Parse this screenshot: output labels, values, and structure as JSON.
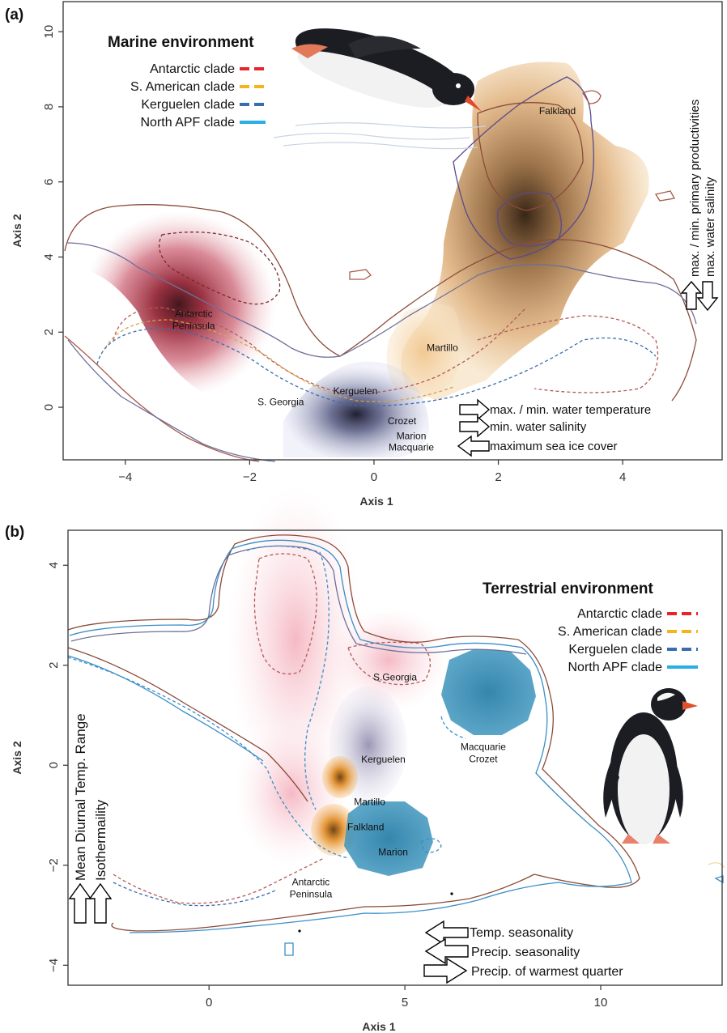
{
  "chart_data": [
    {
      "type": "scatter",
      "panel": "(a)",
      "title": "Marine environment",
      "xlabel": "Axis 1",
      "ylabel": "Axis 2",
      "xlim": [
        -5.0,
        5.6
      ],
      "ylim": [
        -1.4,
        10.8
      ],
      "xticks": [
        "-4",
        "-2",
        "0",
        "2",
        "4"
      ],
      "yticks": [
        "0",
        "2",
        "4",
        "6",
        "8",
        "10"
      ],
      "legend": [
        {
          "name": "Antarctic clade",
          "color": "#e8242a",
          "style": "dashed"
        },
        {
          "name": "S. American clade",
          "color": "#f4b41a",
          "style": "dashed"
        },
        {
          "name": "Kerguelen clade",
          "color": "#3a6db0",
          "style": "dashed"
        },
        {
          "name": "North APF clade",
          "color": "#29aee6",
          "style": "solid"
        }
      ],
      "regions": [
        {
          "name": "Antarctic\nPeninsula",
          "x": -2.9,
          "y": 2.4
        },
        {
          "name": "Falkland",
          "x": 2.95,
          "y": 7.8
        },
        {
          "name": "Martillo",
          "x": 1.1,
          "y": 1.5
        },
        {
          "name": "Kerguelen",
          "x": -0.3,
          "y": 0.35
        },
        {
          "name": "S. Georgia",
          "x": -1.5,
          "y": 0.05
        },
        {
          "name": "Crozet",
          "x": 0.45,
          "y": -0.45
        },
        {
          "name": "Marion",
          "x": 0.6,
          "y": -0.85
        },
        {
          "name": "Macquarie",
          "x": 0.6,
          "y": -1.15
        }
      ],
      "arrows": [
        {
          "label": "max. / min. water temperature",
          "direction": "right"
        },
        {
          "label": "min. water salinity",
          "direction": "right"
        },
        {
          "label": "maximum sea ice cover",
          "direction": "left"
        },
        {
          "label": "max. / min. primary productivities",
          "direction": "up"
        },
        {
          "label": "max. water salinity",
          "direction": "down"
        }
      ]
    },
    {
      "type": "scatter",
      "panel": "(b)",
      "title": "Terrestrial environment",
      "xlabel": "Axis 1",
      "ylabel": "Axis 2",
      "xlim": [
        -3.6,
        13.1
      ],
      "ylim": [
        -4.4,
        4.7
      ],
      "xticks": [
        "0",
        "5",
        "10"
      ],
      "yticks": [
        "-4",
        "-2",
        "0",
        "2",
        "4"
      ],
      "legend": [
        {
          "name": "Antarctic clade",
          "color": "#e8242a",
          "style": "dashed"
        },
        {
          "name": "S. American clade",
          "color": "#f4b41a",
          "style": "dashed"
        },
        {
          "name": "Kerguelen clade",
          "color": "#3a6db0",
          "style": "dashed"
        },
        {
          "name": "North APF clade",
          "color": "#29aee6",
          "style": "solid"
        }
      ],
      "regions": [
        {
          "name": "S.Georgia",
          "x": 4.75,
          "y": 1.7
        },
        {
          "name": "Macquarie\nCrozet",
          "x": 7.0,
          "y": 0.3
        },
        {
          "name": "Kerguelen",
          "x": 4.45,
          "y": 0.05
        },
        {
          "name": "Martillo",
          "x": 4.1,
          "y": -0.8
        },
        {
          "name": "Falkland",
          "x": 4.0,
          "y": -1.3
        },
        {
          "name": "Marion",
          "x": 4.7,
          "y": -1.8
        },
        {
          "name": "Antarctic\nPeninsula",
          "x": 2.6,
          "y": -2.4
        }
      ],
      "arrows": [
        {
          "label": "Mean Diurnal Temp. Range",
          "direction": "up"
        },
        {
          "label": "Isothermaility",
          "direction": "up"
        },
        {
          "label": "Temp. seasonality",
          "direction": "left"
        },
        {
          "label": "Precip. seasonality",
          "direction": "left"
        },
        {
          "label": "Precip. of warmest quarter",
          "direction": "right"
        }
      ]
    }
  ]
}
